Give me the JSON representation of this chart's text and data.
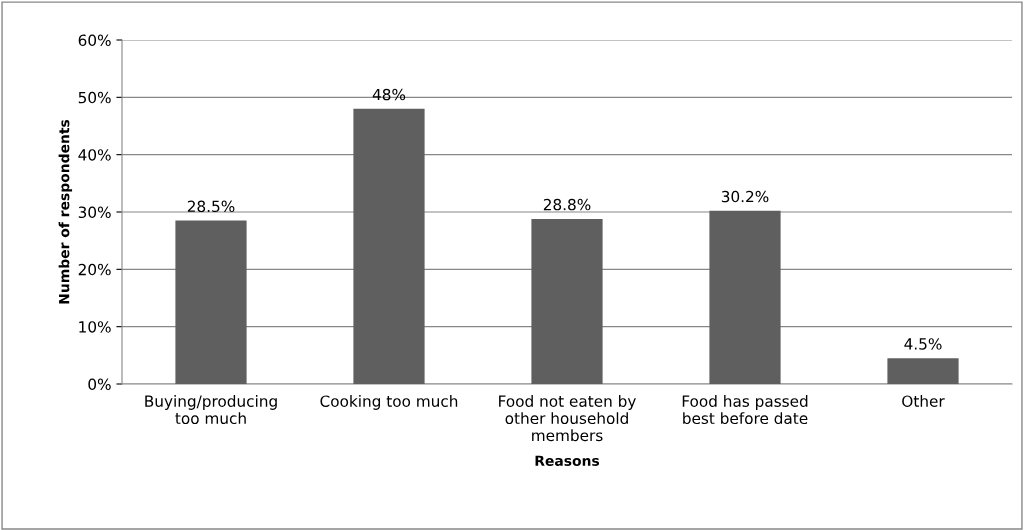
{
  "chart_data": {
    "type": "bar",
    "xlabel": "Reasons",
    "ylabel": "Number of respondents",
    "categories": [
      "Buying/producing\ntoo much",
      "Cooking too much",
      "Food not eaten by\nother household\nmembers",
      "Food has passed\nbest before date",
      "Other"
    ],
    "values": [
      28.5,
      48,
      28.8,
      30.2,
      4.5
    ],
    "value_labels": [
      "28.5%",
      "48%",
      "28.8%",
      "30.2%",
      "4.5%"
    ],
    "color": "#5f5f5f",
    "ylim": [
      0,
      60
    ],
    "yticks": [
      {
        "value": 0,
        "label": "0%"
      },
      {
        "value": 10,
        "label": "10%"
      },
      {
        "value": 20,
        "label": "20%"
      },
      {
        "value": 30,
        "label": "30%"
      },
      {
        "value": 40,
        "label": "40%"
      },
      {
        "value": 50,
        "label": "50%"
      },
      {
        "value": 60,
        "label": "60%"
      }
    ],
    "grid": "y",
    "legend": false
  }
}
